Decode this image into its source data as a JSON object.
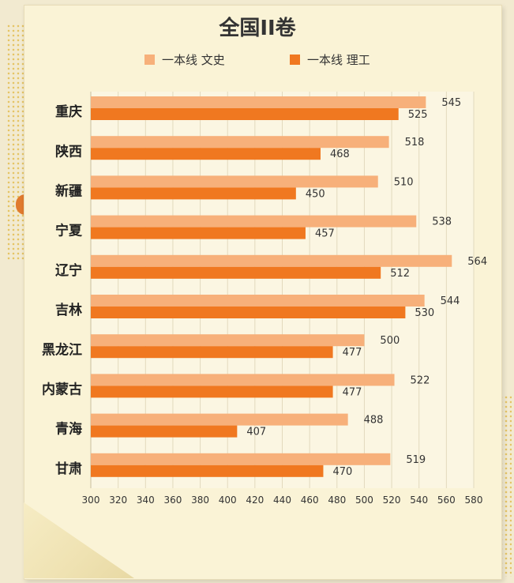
{
  "chart_data": {
    "type": "bar",
    "orientation": "horizontal",
    "title": "全国II卷",
    "categories": [
      "重庆",
      "陕西",
      "新疆",
      "宁夏",
      "辽宁",
      "吉林",
      "黑龙江",
      "内蒙古",
      "青海",
      "甘肃"
    ],
    "series": [
      {
        "name": "一本线 文史",
        "color": "#f7b07a",
        "values": [
          545,
          518,
          510,
          538,
          564,
          544,
          500,
          522,
          488,
          519
        ]
      },
      {
        "name": "一本线 理工",
        "color": "#f07820",
        "values": [
          525,
          468,
          450,
          457,
          512,
          530,
          477,
          477,
          407,
          470
        ]
      }
    ],
    "x_ticks": [
      300,
      320,
      340,
      360,
      380,
      400,
      420,
      440,
      460,
      480,
      500,
      520,
      540,
      560,
      580
    ],
    "xlim": [
      300,
      580
    ],
    "grid": true,
    "legend_position": "top"
  }
}
